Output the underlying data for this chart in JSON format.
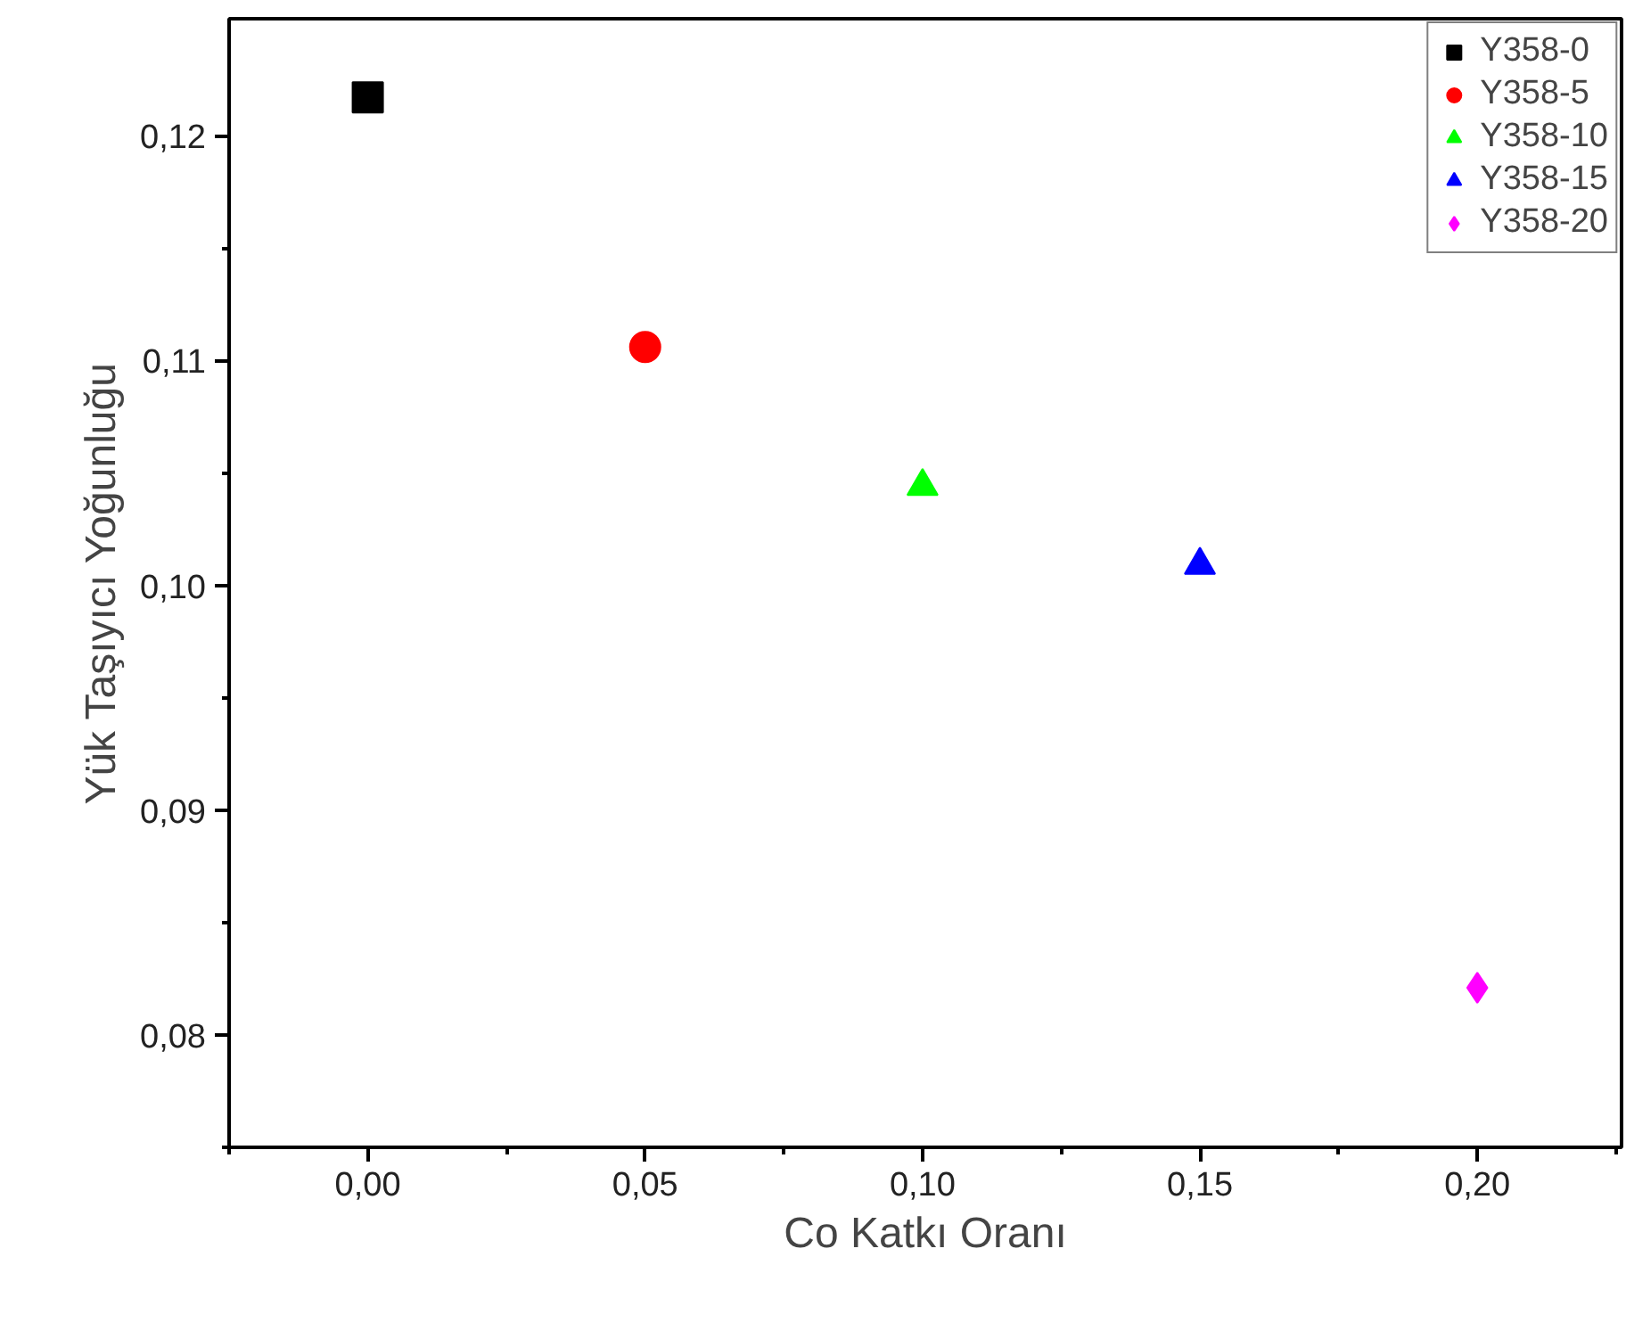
{
  "chart_data": {
    "type": "scatter",
    "xlabel": "Co Katkı Oranı",
    "ylabel": "Yük Taşıyıcı Yoğunluğu",
    "xlim": [
      -0.025,
      0.226
    ],
    "ylim": [
      0.075,
      0.1252
    ],
    "xticks": [
      {
        "value": -0.025,
        "label": null
      },
      {
        "value": 0,
        "label": "0,00"
      },
      {
        "value": 0.025,
        "label": null
      },
      {
        "value": 0.05,
        "label": "0,05"
      },
      {
        "value": 0.075,
        "label": null
      },
      {
        "value": 0.1,
        "label": "0,10"
      },
      {
        "value": 0.125,
        "label": null
      },
      {
        "value": 0.15,
        "label": "0,15"
      },
      {
        "value": 0.175,
        "label": null
      },
      {
        "value": 0.2,
        "label": "0,20"
      },
      {
        "value": 0.225,
        "label": null
      }
    ],
    "yticks": [
      {
        "value": 0.075,
        "label": null
      },
      {
        "value": 0.08,
        "label": "0,08"
      },
      {
        "value": 0.085,
        "label": null
      },
      {
        "value": 0.09,
        "label": "0,09"
      },
      {
        "value": 0.095,
        "label": null
      },
      {
        "value": 0.1,
        "label": "0,10"
      },
      {
        "value": 0.105,
        "label": null
      },
      {
        "value": 0.11,
        "label": "0,11"
      },
      {
        "value": 0.115,
        "label": null
      },
      {
        "value": 0.12,
        "label": "0,12"
      }
    ],
    "legend": "top right",
    "grid": false,
    "series": [
      {
        "name": "Y358-0",
        "color": "#000000",
        "marker": "square",
        "x": [
          0
        ],
        "values": [
          0.1217
        ]
      },
      {
        "name": "Y358-5",
        "color": "#ff0000",
        "marker": "circle",
        "x": [
          0.05
        ],
        "values": [
          0.1106
        ]
      },
      {
        "name": "Y358-10",
        "color": "#00ff00",
        "marker": "triangle",
        "x": [
          0.1
        ],
        "values": [
          0.1044
        ]
      },
      {
        "name": "Y358-15",
        "color": "#0000ff",
        "marker": "triangle",
        "x": [
          0.15
        ],
        "values": [
          0.1009
        ]
      },
      {
        "name": "Y358-20",
        "color": "#ff00ff",
        "marker": "diamond",
        "x": [
          0.2
        ],
        "values": [
          0.0821
        ]
      }
    ]
  }
}
